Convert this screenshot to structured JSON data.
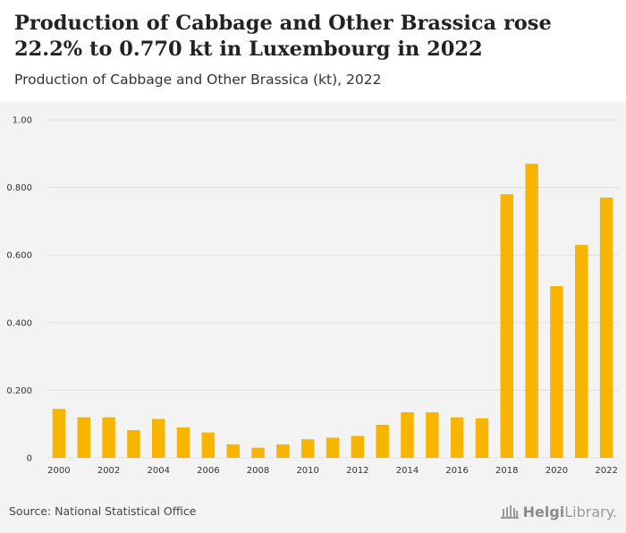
{
  "header": {
    "title": "Production of Cabbage and Other Brassica rose 22.2% to 0.770 kt in Luxembourg in 2022",
    "subtitle": "Production of Cabbage and Other Brassica (kt), 2022"
  },
  "footer": {
    "source": "Source: National Statistical Office",
    "logo_bold": "Helgi",
    "logo_light": "Library."
  },
  "colors": {
    "bar": "#f7b500",
    "grid": "#e0e0e0",
    "background": "#f3f3f3"
  },
  "chart_data": {
    "type": "bar",
    "categories": [
      "2000",
      "2001",
      "2002",
      "2003",
      "2004",
      "2005",
      "2006",
      "2007",
      "2008",
      "2009",
      "2010",
      "2011",
      "2012",
      "2013",
      "2014",
      "2015",
      "2016",
      "2017",
      "2018",
      "2019",
      "2020",
      "2021",
      "2022"
    ],
    "x_tick_labels": [
      "2000",
      "",
      "2002",
      "",
      "2004",
      "",
      "2006",
      "",
      "2008",
      "",
      "2010",
      "",
      "2012",
      "",
      "2014",
      "",
      "2016",
      "",
      "2018",
      "",
      "2020",
      "",
      "2022"
    ],
    "values": [
      0.145,
      0.12,
      0.12,
      0.082,
      0.115,
      0.09,
      0.075,
      0.04,
      0.03,
      0.04,
      0.055,
      0.06,
      0.065,
      0.098,
      0.135,
      0.135,
      0.12,
      0.117,
      0.78,
      0.87,
      0.508,
      0.63,
      0.77
    ],
    "yticks": [
      0,
      0.2,
      0.4,
      0.6,
      0.8,
      1.0
    ],
    "ytick_labels": [
      "0",
      "0.200",
      "0.400",
      "0.600",
      "0.800",
      "1.00"
    ],
    "ylim": [
      0,
      1.0
    ],
    "grid": true,
    "title": "Production of Cabbage and Other Brassica (kt), 2022",
    "xlabel": "",
    "ylabel": ""
  }
}
